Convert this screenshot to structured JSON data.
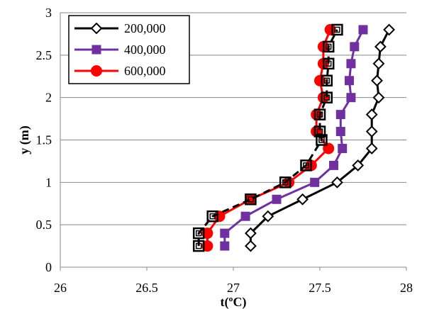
{
  "chart_data": {
    "type": "line",
    "xlabel": "t(ºC)",
    "ylabel": "y (m)",
    "xlim": [
      26,
      28
    ],
    "ylim": [
      0,
      3
    ],
    "x_ticks": [
      "26",
      "26.5",
      "27",
      "27.5",
      "28"
    ],
    "y_ticks": [
      "0",
      "0.5",
      "1",
      "1.5",
      "2",
      "2.5",
      "3"
    ],
    "legend_position": "top-left",
    "grid": {
      "x": false,
      "y": true
    },
    "series": [
      {
        "name": "200,000",
        "color": "#000000",
        "line_style": "solid",
        "marker": "diamond-open",
        "points": [
          [
            27.1,
            0.25
          ],
          [
            27.1,
            0.4
          ],
          [
            27.2,
            0.6
          ],
          [
            27.4,
            0.8
          ],
          [
            27.6,
            1.0
          ],
          [
            27.72,
            1.2
          ],
          [
            27.8,
            1.4
          ],
          [
            27.8,
            1.6
          ],
          [
            27.8,
            1.8
          ],
          [
            27.84,
            2.0
          ],
          [
            27.83,
            2.2
          ],
          [
            27.84,
            2.4
          ],
          [
            27.85,
            2.6
          ],
          [
            27.9,
            2.8
          ]
        ]
      },
      {
        "name": "400,000",
        "color": "#7030A0",
        "line_style": "solid",
        "marker": "square",
        "points": [
          [
            26.95,
            0.25
          ],
          [
            26.95,
            0.4
          ],
          [
            27.07,
            0.6
          ],
          [
            27.25,
            0.8
          ],
          [
            27.47,
            1.0
          ],
          [
            27.58,
            1.2
          ],
          [
            27.63,
            1.4
          ],
          [
            27.62,
            1.6
          ],
          [
            27.62,
            1.8
          ],
          [
            27.68,
            2.0
          ],
          [
            27.67,
            2.2
          ],
          [
            27.68,
            2.4
          ],
          [
            27.7,
            2.6
          ],
          [
            27.75,
            2.8
          ]
        ]
      },
      {
        "name": "600,000",
        "color": "#FF0000",
        "line_style": "solid",
        "marker": "circle",
        "points": [
          [
            26.85,
            0.25
          ],
          [
            26.85,
            0.4
          ],
          [
            26.92,
            0.6
          ],
          [
            27.1,
            0.8
          ],
          [
            27.32,
            1.0
          ],
          [
            27.45,
            1.2
          ],
          [
            27.55,
            1.4
          ],
          [
            27.48,
            1.6
          ],
          [
            27.48,
            1.8
          ],
          [
            27.52,
            2.0
          ],
          [
            27.5,
            2.2
          ],
          [
            27.52,
            2.4
          ],
          [
            27.52,
            2.6
          ],
          [
            27.56,
            2.8
          ]
        ]
      },
      {
        "color": "#000000",
        "line_style": "dashed",
        "marker": "square-open",
        "points": [
          [
            26.8,
            0.25
          ],
          [
            26.8,
            0.4
          ],
          [
            26.88,
            0.6
          ],
          [
            27.1,
            0.8
          ],
          [
            27.3,
            1.0
          ],
          [
            27.42,
            1.2
          ],
          [
            27.51,
            1.5
          ],
          [
            27.5,
            1.6
          ],
          [
            27.5,
            1.8
          ],
          [
            27.54,
            2.0
          ],
          [
            27.54,
            2.2
          ],
          [
            27.55,
            2.4
          ],
          [
            27.55,
            2.6
          ],
          [
            27.6,
            2.8
          ]
        ]
      }
    ]
  }
}
